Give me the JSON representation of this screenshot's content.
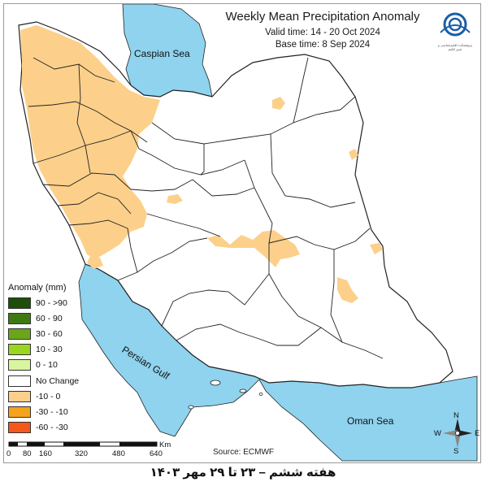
{
  "title": "Weekly Mean Precipitation Anomaly",
  "valid_time": "Valid time: 14 - 20 Oct 2024",
  "base_time": "Base time: 8 Sep 2024",
  "seas": {
    "caspian": "Caspian Sea",
    "persian_gulf": "Persian Gulf",
    "oman": "Oman Sea"
  },
  "legend": {
    "title": "Anomaly (mm)",
    "items": [
      {
        "label": "90 - >90",
        "color": "#1f4d0a"
      },
      {
        "label": "60 - 90",
        "color": "#3e7a12"
      },
      {
        "label": "30 - 60",
        "color": "#6aa51b"
      },
      {
        "label": "10 - 30",
        "color": "#9ad61f"
      },
      {
        "label": "0 - 10",
        "color": "#d8f5a0"
      },
      {
        "label": "No Change",
        "color": "#ffffff"
      },
      {
        "label": "-10 - 0",
        "color": "#fcd08a"
      },
      {
        "label": "-30 - -10",
        "color": "#f5a31a"
      },
      {
        "label": "-60 - -30",
        "color": "#f4581a"
      }
    ]
  },
  "scale": {
    "unit": "Km",
    "ticks": [
      "0",
      "80",
      "160",
      "320",
      "480",
      "640"
    ]
  },
  "source": "Source: ECMWF",
  "footer": "هفته ششم – ۲۳ تا ۲۹ مهر ۱۴۰۳",
  "compass": {
    "n": "N",
    "s": "S",
    "e": "E",
    "w": "W"
  },
  "logo_text": "پژوهشکده اقلیم‌شناسی و تغییر اقلیم",
  "colors": {
    "sea": "#8fd3ee",
    "negative_light": "#fcd08a",
    "border": "#222222"
  }
}
